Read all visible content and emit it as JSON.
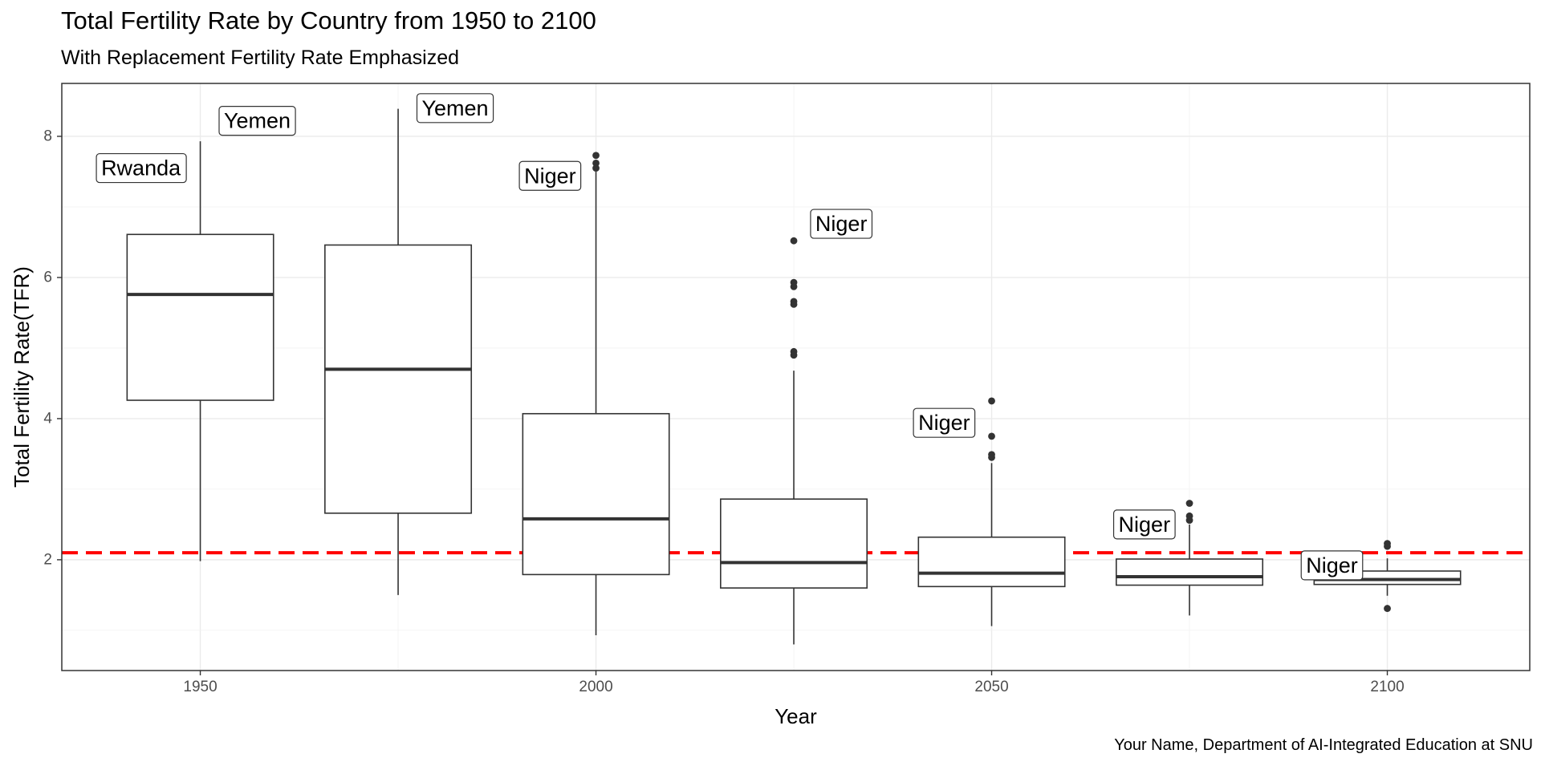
{
  "chart_data": {
    "type": "boxplot",
    "title": "Total Fertility Rate by Country from 1950 to 2100",
    "subtitle": "With Replacement Fertility Rate Emphasized",
    "caption": "Your Name, Department of AI-Integrated Education at SNU",
    "xlabel": "Year",
    "ylabel": "Total Fertility Rate(TFR)",
    "xlim": [
      1932.5,
      2118
    ],
    "ylim": [
      0.43,
      8.75
    ],
    "x_ticks": [
      1950,
      2000,
      2050,
      2100
    ],
    "y_ticks": [
      2,
      4,
      6,
      8
    ],
    "grid": true,
    "reference_line": {
      "y": 2.1,
      "color": "#ff0000",
      "style": "dashed"
    },
    "boxes": [
      {
        "x": 1950,
        "min": 1.98,
        "q1": 4.26,
        "median": 5.76,
        "q3": 6.61,
        "max": 7.93,
        "outliers": []
      },
      {
        "x": 1975,
        "min": 1.5,
        "q1": 2.66,
        "median": 4.7,
        "q3": 6.46,
        "max": 8.39,
        "outliers": []
      },
      {
        "x": 2000,
        "min": 0.93,
        "q1": 1.79,
        "median": 2.58,
        "q3": 4.07,
        "max": 7.5,
        "outliers": [
          7.73,
          7.62,
          7.55
        ]
      },
      {
        "x": 2025,
        "min": 0.8,
        "q1": 1.6,
        "median": 1.96,
        "q3": 2.86,
        "max": 4.68,
        "outliers": [
          6.52,
          5.93,
          5.87,
          5.66,
          5.62,
          4.95,
          4.9
        ]
      },
      {
        "x": 2050,
        "min": 1.06,
        "q1": 1.62,
        "median": 1.81,
        "q3": 2.32,
        "max": 3.37,
        "outliers": [
          4.25,
          3.75,
          3.49,
          3.45
        ]
      },
      {
        "x": 2075,
        "min": 1.21,
        "q1": 1.64,
        "median": 1.76,
        "q3": 2.01,
        "max": 2.5,
        "outliers": [
          2.8,
          2.62,
          2.56
        ]
      },
      {
        "x": 2100,
        "min": 1.49,
        "q1": 1.65,
        "median": 1.72,
        "q3": 1.84,
        "max": 2.02,
        "outliers": [
          2.23,
          2.19,
          1.31
        ]
      }
    ],
    "annotations": [
      {
        "text": "Rwanda",
        "x": 1942.5,
        "y": 7.55
      },
      {
        "text": "Yemen",
        "x": 1957.2,
        "y": 8.22
      },
      {
        "text": "Yemen",
        "x": 1982.2,
        "y": 8.4
      },
      {
        "text": "Niger",
        "x": 1994.2,
        "y": 7.44
      },
      {
        "text": "Niger",
        "x": 2031,
        "y": 6.76
      },
      {
        "text": "Niger",
        "x": 2044,
        "y": 3.94
      },
      {
        "text": "Niger",
        "x": 2069.3,
        "y": 2.5
      },
      {
        "text": "Niger",
        "x": 2093,
        "y": 1.92
      }
    ]
  }
}
